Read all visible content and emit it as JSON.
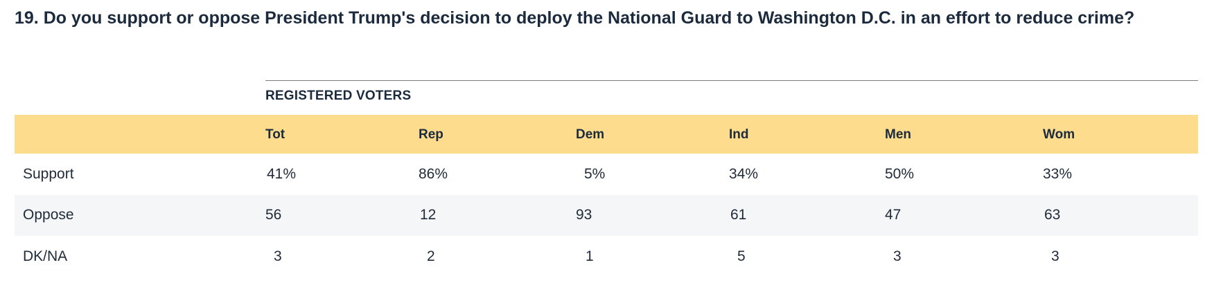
{
  "question": {
    "title": "19. Do you support or oppose President Trump's decision to deploy the National Guard to Washington D.C. in an effort to reduce crime?"
  },
  "table": {
    "group_label": "REGISTERED VOTERS",
    "columns": [
      "Tot",
      "Rep",
      "Dem",
      "Ind",
      "Men",
      "Wom"
    ],
    "rows": [
      {
        "label": "Support",
        "values": [
          "41%",
          "86%",
          "5%",
          "34%",
          "50%",
          "33%"
        ]
      },
      {
        "label": "Oppose",
        "values": [
          "56",
          "12",
          "93",
          "61",
          "47",
          "63"
        ]
      },
      {
        "label": "DK/NA",
        "values": [
          "3",
          "2",
          "1",
          "5",
          "3",
          "3"
        ]
      }
    ]
  },
  "colors": {
    "header_band": "#fddc8d",
    "alt_row": "#f5f6f7",
    "text": "#1b2a3c"
  }
}
